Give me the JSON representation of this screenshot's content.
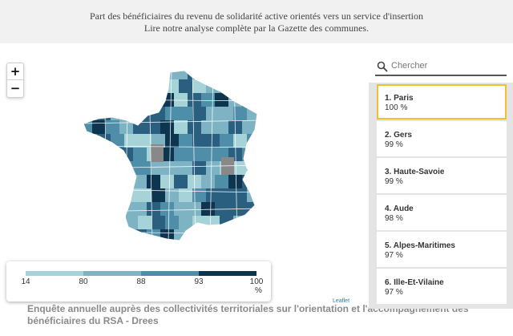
{
  "header": {
    "line1": "Part des bénéficiaires du revenu de solidarité active orientés vers un service d'insertion",
    "line2": "Lire notre analyse complète par la Gazette des communes."
  },
  "map": {
    "zoom_in": "+",
    "zoom_out": "−",
    "attribution": "Leaflet",
    "colors": [
      "#a6d3d8",
      "#7eb3c4",
      "#4f8ea9",
      "#2b5f80",
      "#0e3550"
    ],
    "no_data_color": "#888888"
  },
  "legend": {
    "ticks": [
      "14",
      "80",
      "88",
      "93",
      "100"
    ],
    "unit": "%",
    "colors": [
      "#a6d3d8",
      "#7eb3c4",
      "#4f8ea9",
      "#0e3550"
    ]
  },
  "search": {
    "placeholder": "Chercher"
  },
  "ranking": [
    {
      "name": "1. Paris",
      "value": "100 %"
    },
    {
      "name": "2. Gers",
      "value": "99 %"
    },
    {
      "name": "3. Haute-Savoie",
      "value": "99 %"
    },
    {
      "name": "4. Aude",
      "value": "98 %"
    },
    {
      "name": "5. Alpes-Maritimes",
      "value": "97 %"
    },
    {
      "name": "6. Ille-Et-Vilaine",
      "value": "97 %"
    }
  ],
  "caption": "Enquête annuelle auprès des collectivités territoriales sur l'orientation et l'accompagnement des bénéficiaires du RSA - Drees"
}
